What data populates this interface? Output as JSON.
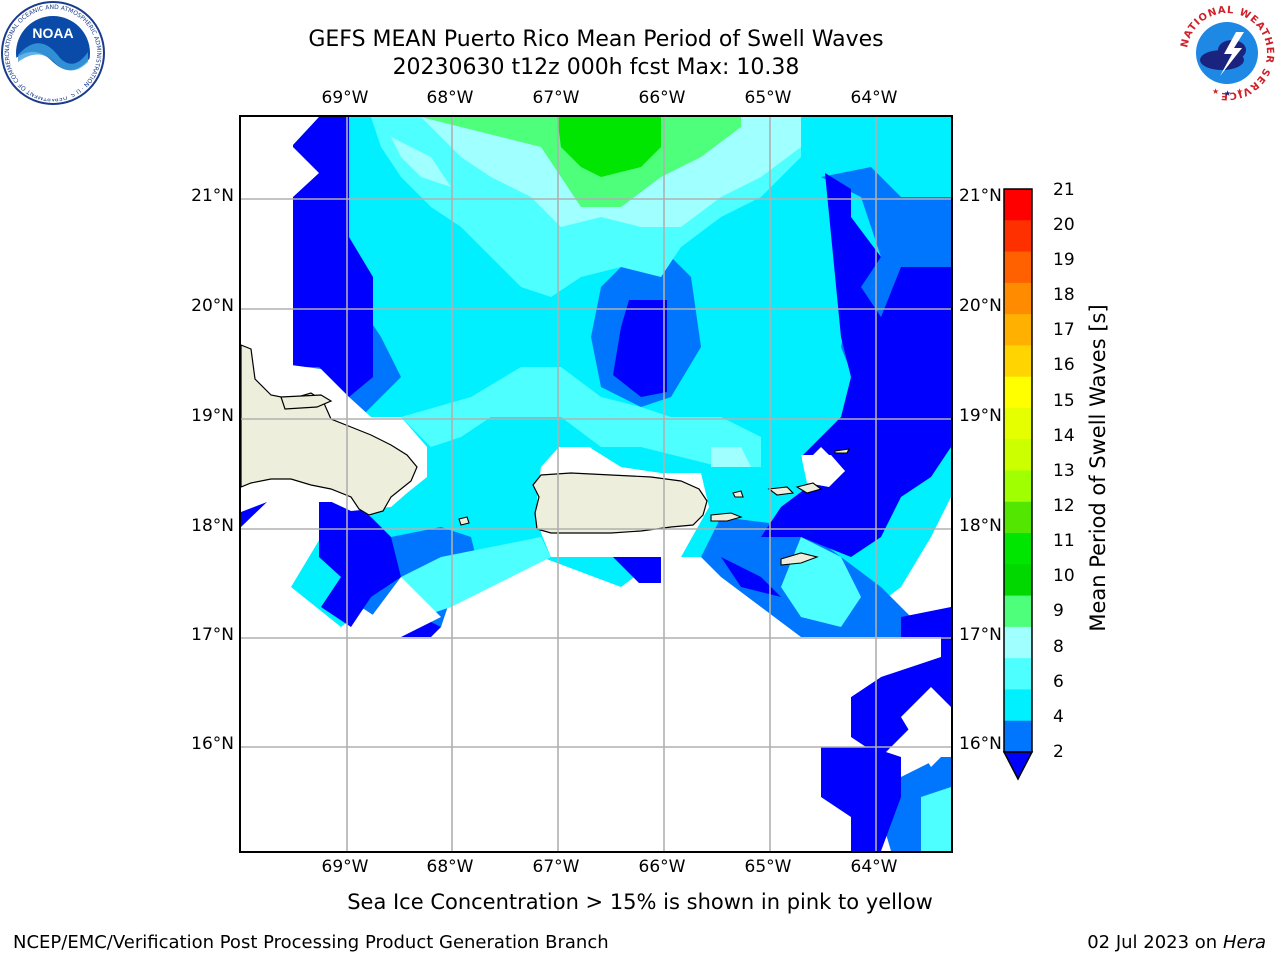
{
  "title": {
    "line1": "GEFS MEAN Puerto Rico Mean Period of Swell Waves",
    "line2": "20230630 t12z 000h fcst   Max: 10.38"
  },
  "logos": {
    "noaa_text": "NOAA",
    "noaa_ring": "NATIONAL OCEANIC AND ATMOSPHERIC ADMINISTRATION · U.S. DEPARTMENT OF COMMERCE",
    "nws_ring": "NATIONAL WEATHER SERVICE"
  },
  "map": {
    "lon_labels": [
      "69°W",
      "68°W",
      "67°W",
      "66°W",
      "65°W",
      "64°W"
    ],
    "lat_labels": [
      "21°N",
      "20°N",
      "19°N",
      "18°N",
      "17°N",
      "16°N"
    ],
    "colors": {
      "lt2": "#0000ff",
      "c2_4": "#0076ff",
      "c4_6": "#00f0ff",
      "c6_8": "#4dffff",
      "c8_9": "#a0ffff",
      "c9_10": "#4dff7a",
      "c10_11": "#00e600",
      "land": "#eeeedc",
      "grid": "#b0b0b0"
    }
  },
  "colorbar": {
    "label": "Mean Period of Swell Waves [s]",
    "ticks": [
      "21",
      "20",
      "19",
      "18",
      "17",
      "16",
      "15",
      "14",
      "13",
      "12",
      "11",
      "10",
      "9",
      "8",
      "6",
      "4",
      "2"
    ],
    "bin_colors": [
      "#ff0000",
      "#ff3000",
      "#ff6000",
      "#ff8c00",
      "#ffb000",
      "#ffd400",
      "#ffff00",
      "#e6ff00",
      "#ccff00",
      "#a0ff00",
      "#52e600",
      "#00e600",
      "#00d800",
      "#4dff7a",
      "#a0ffff",
      "#4dffff",
      "#00f0ff",
      "#0076ff"
    ],
    "under_color": "#0000ff"
  },
  "notes": {
    "sea_ice": "Sea Ice Concentration > 15% is shown in pink to yellow"
  },
  "footer": {
    "left": "NCEP/EMC/Verification Post Processing Product Generation Branch",
    "date": "02 Jul 2023",
    "on": "on",
    "machine": "Hera"
  }
}
